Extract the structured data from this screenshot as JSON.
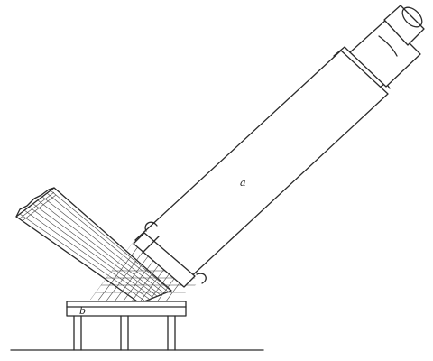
{
  "figure": {
    "labels": {
      "tube": "a",
      "plate": "b"
    }
  }
}
